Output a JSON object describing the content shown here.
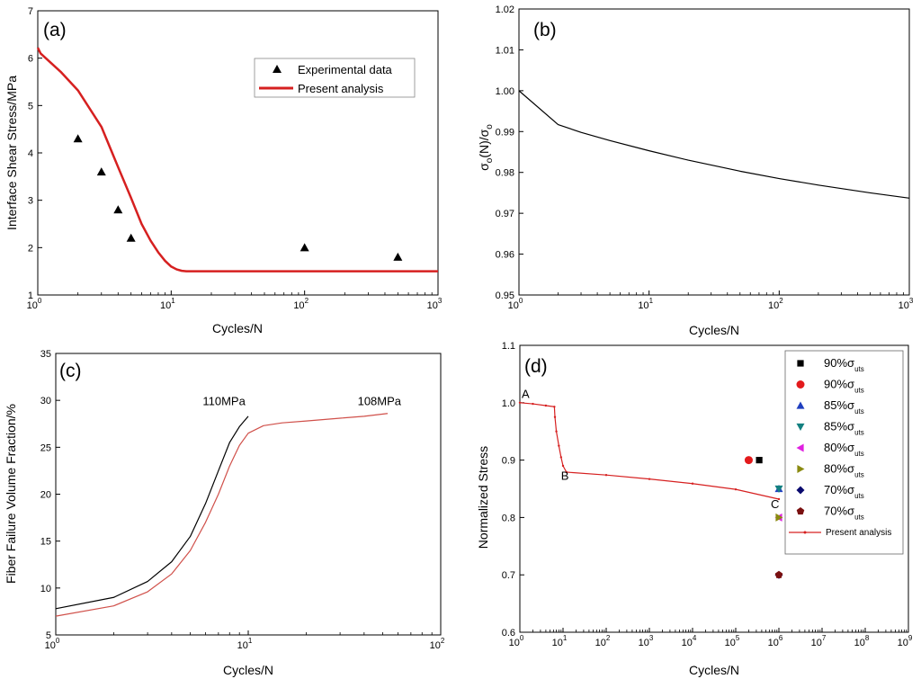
{
  "chart_data": [
    {
      "id": "a",
      "type": "scatter+line",
      "panel_label": "(a)",
      "xlabel": "Cycles/N",
      "ylabel": "Interface Shear Stress/MPa",
      "xscale": "log",
      "xlim": [
        1,
        1000
      ],
      "ylim": [
        1,
        7
      ],
      "xticks": [
        1,
        10,
        100,
        1000
      ],
      "xtick_labels": [
        {
          "base": "10",
          "exp": "0"
        },
        {
          "base": "10",
          "exp": "1"
        },
        {
          "base": "10",
          "exp": "2"
        },
        {
          "base": "10",
          "exp": "3"
        }
      ],
      "yticks": [
        1,
        2,
        3,
        4,
        5,
        6,
        7
      ],
      "legend_position": "top-right",
      "legend": [
        "Experimental data",
        "Present analysis"
      ],
      "series": [
        {
          "name": "Experimental data",
          "kind": "scatter",
          "marker": "triangle",
          "color": "#000000",
          "points": [
            [
              2,
              4.3
            ],
            [
              3,
              3.6
            ],
            [
              4,
              2.8
            ],
            [
              5,
              2.2
            ],
            [
              100,
              2.0
            ],
            [
              500,
              1.8
            ]
          ]
        },
        {
          "name": "Present analysis",
          "kind": "line",
          "color": "#d62020",
          "points": [
            [
              1,
              6.22
            ],
            [
              1.05,
              6.1
            ],
            [
              1.5,
              5.7
            ],
            [
              2,
              5.32
            ],
            [
              3,
              4.55
            ],
            [
              4,
              3.7
            ],
            [
              5,
              3.05
            ],
            [
              6,
              2.5
            ],
            [
              7,
              2.15
            ],
            [
              8,
              1.9
            ],
            [
              9,
              1.72
            ],
            [
              10,
              1.6
            ],
            [
              11,
              1.54
            ],
            [
              12,
              1.51
            ],
            [
              13,
              1.5
            ],
            [
              20,
              1.5
            ],
            [
              100,
              1.5
            ],
            [
              1000,
              1.5
            ]
          ]
        }
      ]
    },
    {
      "id": "b",
      "type": "line",
      "panel_label": "(b)",
      "xlabel": "Cycles/N",
      "ylabel": {
        "sym1": "σ",
        "sub1": "o",
        "mid": "(N)/",
        "sym2": "σ",
        "sub2": "o"
      },
      "xscale": "log",
      "xlim": [
        1,
        1000
      ],
      "ylim": [
        0.95,
        1.02
      ],
      "xticks": [
        1,
        10,
        100,
        1000
      ],
      "xtick_labels": [
        {
          "base": "10",
          "exp": "0"
        },
        {
          "base": "10",
          "exp": "1"
        },
        {
          "base": "10",
          "exp": "2"
        },
        {
          "base": "10",
          "exp": "3"
        }
      ],
      "yticks": [
        0.95,
        0.96,
        0.97,
        0.98,
        0.99,
        1.0,
        1.01,
        1.02
      ],
      "ytick_labels": [
        "0.95",
        "0.96",
        "0.97",
        "0.98",
        "0.99",
        "1.00",
        "1.01",
        "1.02"
      ],
      "series": [
        {
          "name": "curve",
          "kind": "line",
          "color": "#000000",
          "points": [
            [
              1,
              1.0
            ],
            [
              2,
              0.9917
            ],
            [
              3,
              0.9898
            ],
            [
              5,
              0.9878
            ],
            [
              10,
              0.9853
            ],
            [
              20,
              0.983
            ],
            [
              50,
              0.9803
            ],
            [
              100,
              0.9785
            ],
            [
              200,
              0.9769
            ],
            [
              500,
              0.975
            ],
            [
              1000,
              0.9737
            ]
          ]
        }
      ]
    },
    {
      "id": "c",
      "type": "line",
      "panel_label": "(c)",
      "xlabel": "Cycles/N",
      "ylabel": "Fiber Failure Volume Fraction/%",
      "xscale": "log",
      "xlim": [
        1,
        100
      ],
      "ylim": [
        5,
        35
      ],
      "xticks": [
        1,
        10,
        100
      ],
      "xtick_labels": [
        {
          "base": "10",
          "exp": "0"
        },
        {
          "base": "10",
          "exp": "1"
        },
        {
          "base": "10",
          "exp": "2"
        }
      ],
      "yticks": [
        5,
        10,
        15,
        20,
        25,
        30,
        35
      ],
      "annotations": [
        {
          "text": "110MPa",
          "x": 5.8,
          "y": 29.5
        },
        {
          "text": "108MPa",
          "x": 37,
          "y": 29.5
        }
      ],
      "series": [
        {
          "name": "110MPa",
          "kind": "line",
          "color": "#000000",
          "points": [
            [
              1,
              7.8
            ],
            [
              2,
              9.0
            ],
            [
              3,
              10.7
            ],
            [
              4,
              12.8
            ],
            [
              5,
              15.5
            ],
            [
              6,
              19.0
            ],
            [
              7,
              22.5
            ],
            [
              8,
              25.5
            ],
            [
              9,
              27.2
            ],
            [
              10,
              28.3
            ]
          ]
        },
        {
          "name": "108MPa",
          "kind": "line",
          "color": "#d0504a",
          "points": [
            [
              1,
              7.0
            ],
            [
              2,
              8.1
            ],
            [
              3,
              9.6
            ],
            [
              4,
              11.5
            ],
            [
              5,
              14.0
            ],
            [
              6,
              17.0
            ],
            [
              7,
              20.0
            ],
            [
              8,
              23.0
            ],
            [
              9,
              25.2
            ],
            [
              10,
              26.5
            ],
            [
              12,
              27.3
            ],
            [
              15,
              27.6
            ],
            [
              20,
              27.8
            ],
            [
              30,
              28.1
            ],
            [
              40,
              28.3
            ],
            [
              53,
              28.6
            ]
          ]
        }
      ]
    },
    {
      "id": "d",
      "type": "scatter+line",
      "panel_label": "(d)",
      "xlabel": "Cycles/N",
      "ylabel": "Normalized Stress",
      "xscale": "log",
      "xlim": [
        1,
        1000000000
      ],
      "ylim": [
        0.6,
        1.1
      ],
      "xticks": [
        1,
        10,
        100,
        1000,
        10000,
        100000,
        1000000,
        10000000,
        100000000,
        1000000000
      ],
      "xtick_labels": [
        {
          "base": "10",
          "exp": "0"
        },
        {
          "base": "10",
          "exp": "1"
        },
        {
          "base": "10",
          "exp": "2"
        },
        {
          "base": "10",
          "exp": "3"
        },
        {
          "base": "10",
          "exp": "4"
        },
        {
          "base": "10",
          "exp": "5"
        },
        {
          "base": "10",
          "exp": "6"
        },
        {
          "base": "10",
          "exp": "7"
        },
        {
          "base": "10",
          "exp": "8"
        },
        {
          "base": "10",
          "exp": "9"
        }
      ],
      "yticks": [
        0.6,
        0.7,
        0.8,
        0.9,
        1.0,
        1.1
      ],
      "ytick_labels": [
        "0.6",
        "0.7",
        "0.8",
        "0.9",
        "1.0",
        "1.1"
      ],
      "legend_position": "top-right",
      "annotations": [
        {
          "text": "A",
          "x": 1.1,
          "y": 1.008
        },
        {
          "text": "B",
          "x": 9,
          "y": 0.866
        },
        {
          "text": "C",
          "x": 650000,
          "y": 0.816
        }
      ],
      "series": [
        {
          "name": "90%",
          "sym": "σ",
          "sub": "uts",
          "kind": "scatter",
          "marker": "square",
          "color": "#000000",
          "points": [
            [
              350000,
              0.9
            ]
          ]
        },
        {
          "name": "90%",
          "sym": "σ",
          "sub": "uts",
          "kind": "scatter",
          "marker": "circle",
          "color": "#e31a1c",
          "points": [
            [
              200000,
              0.9
            ]
          ]
        },
        {
          "name": "85%",
          "sym": "σ",
          "sub": "uts",
          "kind": "scatter",
          "marker": "triangle-up",
          "color": "#1f3fbf",
          "points": [
            [
              1000000,
              0.85
            ]
          ]
        },
        {
          "name": "85%",
          "sym": "σ",
          "sub": "uts",
          "kind": "scatter",
          "marker": "triangle-down",
          "color": "#138080",
          "points": [
            [
              1000000,
              0.85
            ]
          ]
        },
        {
          "name": "80%",
          "sym": "σ",
          "sub": "uts",
          "kind": "scatter",
          "marker": "triangle-left",
          "color": "#e020e0",
          "points": [
            [
              1000000,
              0.8
            ]
          ]
        },
        {
          "name": "80%",
          "sym": "σ",
          "sub": "uts",
          "kind": "scatter",
          "marker": "triangle-right",
          "color": "#8a8a10",
          "points": [
            [
              1000000,
              0.8
            ]
          ]
        },
        {
          "name": "70%",
          "sym": "σ",
          "sub": "uts",
          "kind": "scatter",
          "marker": "diamond",
          "color": "#0a0a6e",
          "points": [
            [
              1000000,
              0.7
            ]
          ]
        },
        {
          "name": "70%",
          "sym": "σ",
          "sub": "uts",
          "kind": "scatter",
          "marker": "pentagon",
          "color": "#7a1010",
          "points": [
            [
              1000000,
              0.7
            ]
          ]
        },
        {
          "name": "Present analysis",
          "kind": "line",
          "marker": "small-dot",
          "color": "#d62020",
          "points": [
            [
              1,
              1.0
            ],
            [
              2,
              0.998
            ],
            [
              4,
              0.995
            ],
            [
              6.3,
              0.993
            ],
            [
              6.5,
              0.975
            ],
            [
              7,
              0.95
            ],
            [
              8,
              0.925
            ],
            [
              9,
              0.905
            ],
            [
              10,
              0.89
            ],
            [
              12,
              0.879
            ],
            [
              100,
              0.874
            ],
            [
              1000,
              0.867
            ],
            [
              10000,
              0.859
            ],
            [
              100000,
              0.849
            ],
            [
              1000000,
              0.832
            ]
          ]
        }
      ]
    }
  ]
}
